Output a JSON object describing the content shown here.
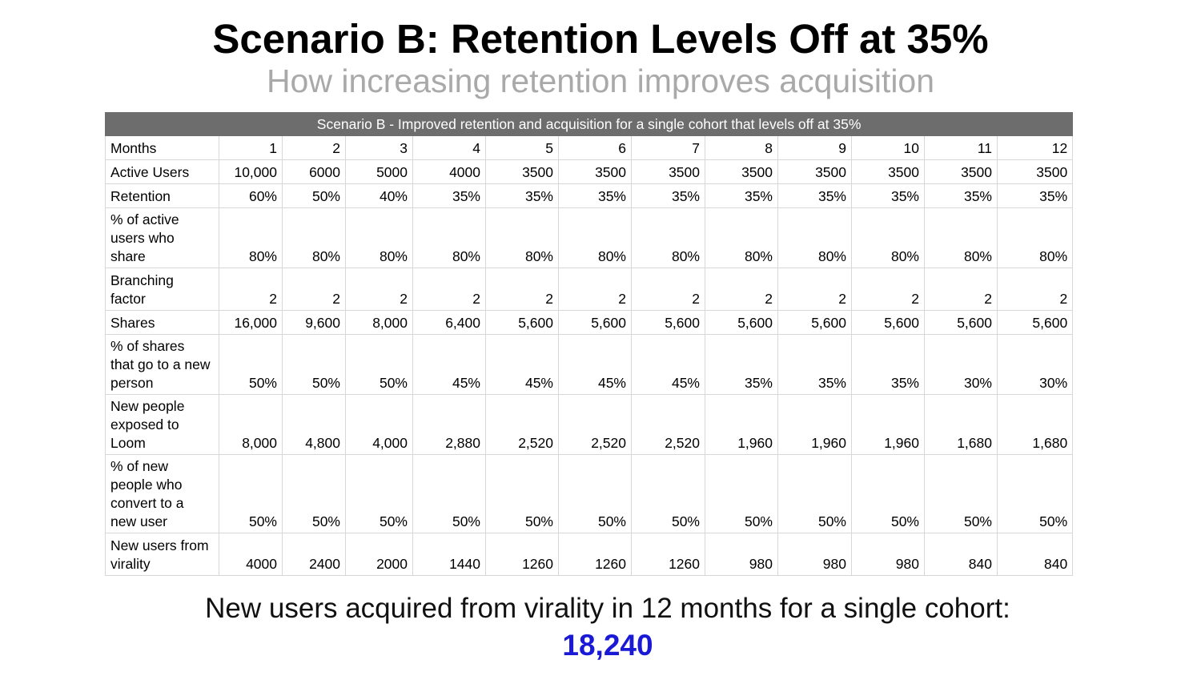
{
  "title": "Scenario B: Retention Levels Off at 35%",
  "subtitle": "How increasing retention improves acquisition",
  "table": {
    "caption": "Scenario B - Improved retention and acquisition for a single cohort that levels off at 35%",
    "rows": [
      {
        "label": [
          "Months"
        ],
        "values": [
          "1",
          "2",
          "3",
          "4",
          "5",
          "6",
          "7",
          "8",
          "9",
          "10",
          "11",
          "12"
        ]
      },
      {
        "label": [
          "Active Users"
        ],
        "values": [
          "10,000",
          "6000",
          "5000",
          "4000",
          "3500",
          "3500",
          "3500",
          "3500",
          "3500",
          "3500",
          "3500",
          "3500"
        ]
      },
      {
        "label": [
          "Retention"
        ],
        "values": [
          "60%",
          "50%",
          "40%",
          "35%",
          "35%",
          "35%",
          "35%",
          "35%",
          "35%",
          "35%",
          "35%",
          "35%"
        ]
      },
      {
        "label": [
          "% of active",
          "users who",
          "share"
        ],
        "values": [
          "80%",
          "80%",
          "80%",
          "80%",
          "80%",
          "80%",
          "80%",
          "80%",
          "80%",
          "80%",
          "80%",
          "80%"
        ]
      },
      {
        "label": [
          "Branching",
          "factor"
        ],
        "values": [
          "2",
          "2",
          "2",
          "2",
          "2",
          "2",
          "2",
          "2",
          "2",
          "2",
          "2",
          "2"
        ]
      },
      {
        "label": [
          "Shares"
        ],
        "values": [
          "16,000",
          "9,600",
          "8,000",
          "6,400",
          "5,600",
          "5,600",
          "5,600",
          "5,600",
          "5,600",
          "5,600",
          "5,600",
          "5,600"
        ]
      },
      {
        "label": [
          "% of shares",
          "that go to a new",
          "person"
        ],
        "values": [
          "50%",
          "50%",
          "50%",
          "45%",
          "45%",
          "45%",
          "45%",
          "35%",
          "35%",
          "35%",
          "30%",
          "30%"
        ]
      },
      {
        "label": [
          "New people",
          "exposed to",
          "Loom"
        ],
        "values": [
          "8,000",
          "4,800",
          "4,000",
          "2,880",
          "2,520",
          "2,520",
          "2,520",
          "1,960",
          "1,960",
          "1,960",
          "1,680",
          "1,680"
        ]
      },
      {
        "label": [
          "% of new",
          "people who",
          "convert to a",
          "new user"
        ],
        "values": [
          "50%",
          "50%",
          "50%",
          "50%",
          "50%",
          "50%",
          "50%",
          "50%",
          "50%",
          "50%",
          "50%",
          "50%"
        ]
      },
      {
        "label": [
          "New users from",
          "virality"
        ],
        "values": [
          "4000",
          "2400",
          "2000",
          "1440",
          "1260",
          "1260",
          "1260",
          "980",
          "980",
          "980",
          "840",
          "840"
        ]
      }
    ]
  },
  "summary": "New users acquired from virality in 12 months for a single cohort:",
  "total": "18,240"
}
